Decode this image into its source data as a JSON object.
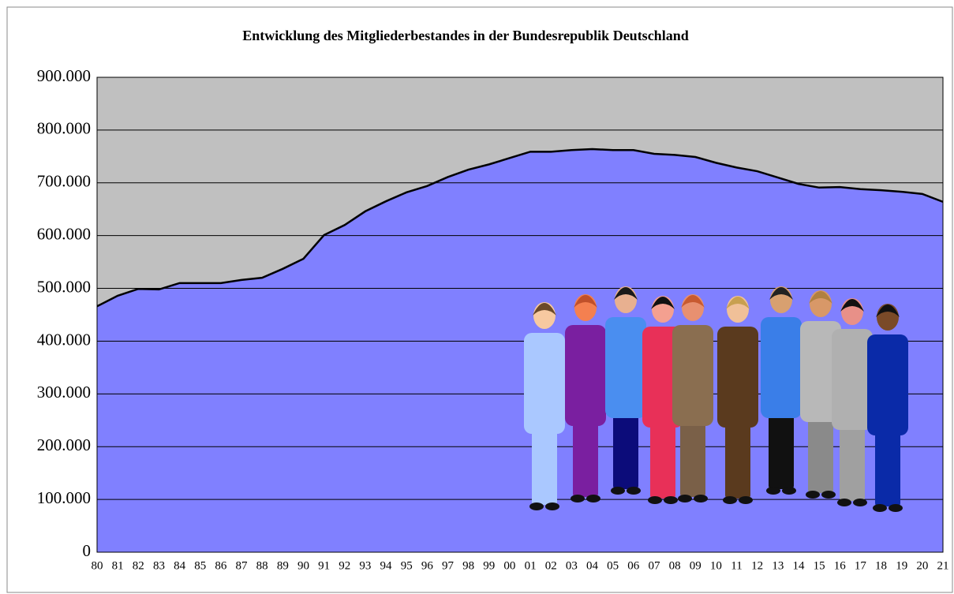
{
  "chart_data": {
    "type": "area",
    "title": "Entwicklung des Mitgliederbestandes in der Bundesrepublik Deutschland",
    "categories": [
      "80",
      "81",
      "82",
      "83",
      "84",
      "85",
      "86",
      "87",
      "88",
      "89",
      "90",
      "91",
      "92",
      "93",
      "94",
      "95",
      "96",
      "97",
      "98",
      "99",
      "00",
      "01",
      "02",
      "03",
      "04",
      "05",
      "06",
      "07",
      "08",
      "09",
      "10",
      "11",
      "12",
      "13",
      "14",
      "15",
      "16",
      "17",
      "18",
      "19",
      "20",
      "21"
    ],
    "series": [
      {
        "color": "#8080ff",
        "values": [
          466000,
          486000,
          499000,
          498000,
          510000,
          510000,
          510000,
          516000,
          520000,
          537000,
          556000,
          601000,
          620000,
          646000,
          665000,
          682000,
          694000,
          711000,
          725000,
          735000,
          747000,
          759000,
          759000,
          762000,
          764000,
          762000,
          762000,
          755000,
          753000,
          749000,
          738000,
          729000,
          722000,
          710000,
          698000,
          691000,
          692000,
          688000,
          686000,
          683000,
          679000,
          664000
        ]
      }
    ],
    "ylim": [
      0,
      900000
    ],
    "yticks": [
      {
        "value": 0,
        "label": "0"
      },
      {
        "value": 100000,
        "label": "100.000"
      },
      {
        "value": 200000,
        "label": "200.000"
      },
      {
        "value": 300000,
        "label": "300.000"
      },
      {
        "value": 400000,
        "label": "400.000"
      },
      {
        "value": 500000,
        "label": "500.000"
      },
      {
        "value": 600000,
        "label": "600.000"
      },
      {
        "value": 700000,
        "label": "700.000"
      },
      {
        "value": 800000,
        "label": "800.000"
      },
      {
        "value": 900000,
        "label": "900.000"
      }
    ],
    "grid": true,
    "plot_background": "#c0c0c0",
    "line_color": "#000000"
  }
}
